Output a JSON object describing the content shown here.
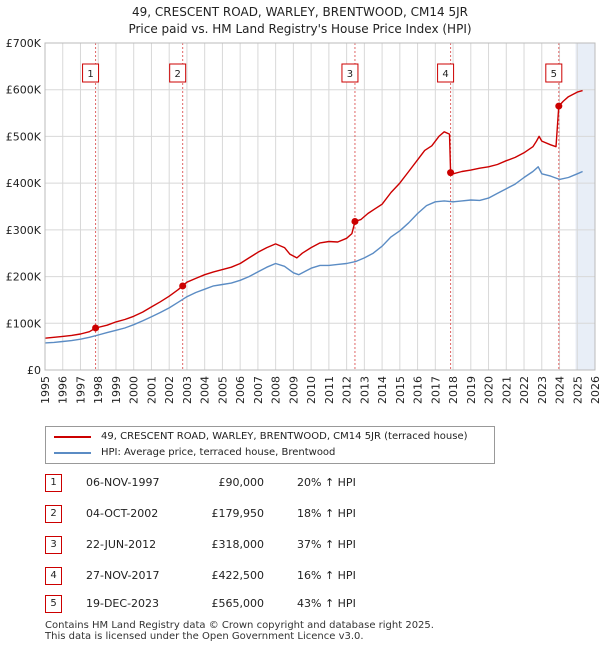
{
  "header": {
    "title": "49, CRESCENT ROAD, WARLEY, BRENTWOOD, CM14 5JR",
    "subtitle": "Price paid vs. HM Land Registry's House Price Index (HPI)"
  },
  "chart_data": {
    "type": "line",
    "title": "49, CRESCENT ROAD, WARLEY, BRENTWOOD, CM14 5JR",
    "subtitle": "Price paid vs. HM Land Registry's House Price Index (HPI)",
    "xlim": [
      1995,
      2026
    ],
    "ylim": [
      0,
      700000
    ],
    "x_ticks": [
      1995,
      1996,
      1997,
      1998,
      1999,
      2000,
      2001,
      2002,
      2003,
      2004,
      2005,
      2006,
      2007,
      2008,
      2009,
      2010,
      2011,
      2012,
      2013,
      2014,
      2015,
      2016,
      2017,
      2018,
      2019,
      2020,
      2021,
      2022,
      2023,
      2024,
      2025,
      2026
    ],
    "y_ticks": [
      0,
      100000,
      200000,
      300000,
      400000,
      500000,
      600000,
      700000
    ],
    "y_tick_labels": [
      "£0",
      "£100K",
      "£200K",
      "£300K",
      "£400K",
      "£500K",
      "£600K",
      "£700K"
    ],
    "grid": true,
    "legend_position": "bottom",
    "shaded_future_from": 2024.9,
    "colors": {
      "property": "#cc0000",
      "hpi": "#5b8cc4",
      "marker": "#cc0000",
      "vline": "#e06666",
      "shade": "#e8eef7",
      "grid": "#d8d8d8"
    },
    "series": [
      {
        "name": "49, CRESCENT ROAD, WARLEY, BRENTWOOD, CM14 5JR (terraced house)",
        "x": [
          1995.0,
          1995.5,
          1996.0,
          1996.5,
          1997.0,
          1997.5,
          1997.85,
          1998.5,
          1999.0,
          1999.5,
          2000.0,
          2000.5,
          2001.0,
          2001.5,
          2002.0,
          2002.5,
          2002.76,
          2003.0,
          2003.5,
          2004.0,
          2004.5,
          2005.0,
          2005.5,
          2006.0,
          2006.5,
          2007.0,
          2007.5,
          2008.0,
          2008.5,
          2008.8,
          2009.2,
          2009.5,
          2010.0,
          2010.5,
          2011.0,
          2011.5,
          2012.0,
          2012.3,
          2012.47,
          2012.8,
          2013.2,
          2013.6,
          2014.0,
          2014.5,
          2015.0,
          2015.5,
          2016.0,
          2016.4,
          2016.8,
          2017.2,
          2017.5,
          2017.8,
          2017.86,
          2018.0,
          2018.5,
          2019.0,
          2019.5,
          2020.0,
          2020.5,
          2021.0,
          2021.5,
          2022.0,
          2022.5,
          2022.7,
          2022.85,
          2023.0,
          2023.5,
          2023.8,
          2023.96,
          2024.2,
          2024.5,
          2025.0,
          2025.3
        ],
        "values": [
          68000,
          70000,
          72000,
          74000,
          77000,
          82000,
          90000,
          96000,
          103000,
          108000,
          115000,
          124000,
          135000,
          146000,
          158000,
          172000,
          179950,
          188000,
          196000,
          204000,
          210000,
          215000,
          220000,
          228000,
          240000,
          252000,
          262000,
          270000,
          262000,
          248000,
          240000,
          250000,
          262000,
          272000,
          275000,
          274000,
          282000,
          292000,
          318000,
          322000,
          335000,
          345000,
          355000,
          380000,
          400000,
          425000,
          450000,
          470000,
          480000,
          500000,
          510000,
          505000,
          422500,
          420000,
          425000,
          428000,
          432000,
          435000,
          440000,
          448000,
          455000,
          465000,
          478000,
          490000,
          500000,
          490000,
          482000,
          478000,
          565000,
          575000,
          585000,
          595000,
          598000
        ]
      },
      {
        "name": "HPI: Average price, terraced house, Brentwood",
        "x": [
          1995.0,
          1995.5,
          1996.0,
          1996.5,
          1997.0,
          1997.5,
          1998.0,
          1998.5,
          1999.0,
          1999.5,
          2000.0,
          2000.5,
          2001.0,
          2001.5,
          2002.0,
          2002.5,
          2003.0,
          2003.5,
          2004.0,
          2004.5,
          2005.0,
          2005.5,
          2006.0,
          2006.5,
          2007.0,
          2007.5,
          2008.0,
          2008.5,
          2009.0,
          2009.3,
          2009.7,
          2010.0,
          2010.5,
          2011.0,
          2011.5,
          2012.0,
          2012.5,
          2013.0,
          2013.5,
          2014.0,
          2014.5,
          2015.0,
          2015.5,
          2016.0,
          2016.5,
          2017.0,
          2017.5,
          2018.0,
          2018.5,
          2019.0,
          2019.5,
          2020.0,
          2020.5,
          2021.0,
          2021.5,
          2022.0,
          2022.5,
          2022.8,
          2023.0,
          2023.5,
          2024.0,
          2024.5,
          2025.0,
          2025.3
        ],
        "values": [
          58000,
          59000,
          61000,
          63000,
          66000,
          70000,
          75000,
          80000,
          85000,
          90000,
          97000,
          105000,
          114000,
          123000,
          133000,
          145000,
          157000,
          166000,
          173000,
          180000,
          183000,
          186000,
          192000,
          200000,
          210000,
          220000,
          228000,
          222000,
          208000,
          204000,
          212000,
          218000,
          224000,
          224000,
          226000,
          228000,
          232000,
          240000,
          250000,
          265000,
          285000,
          298000,
          315000,
          335000,
          352000,
          360000,
          362000,
          360000,
          362000,
          364000,
          363000,
          368000,
          378000,
          388000,
          398000,
          412000,
          425000,
          435000,
          420000,
          415000,
          408000,
          412000,
          420000,
          425000
        ]
      }
    ],
    "sales": [
      {
        "label": "1",
        "x": 1997.85,
        "value": 90000
      },
      {
        "label": "2",
        "x": 2002.76,
        "value": 179950
      },
      {
        "label": "3",
        "x": 2012.47,
        "value": 318000
      },
      {
        "label": "4",
        "x": 2017.86,
        "value": 422500
      },
      {
        "label": "5",
        "x": 2023.96,
        "value": 565000
      }
    ]
  },
  "legend": {
    "property_label": "49, CRESCENT ROAD, WARLEY, BRENTWOOD, CM14 5JR (terraced house)",
    "hpi_label": "HPI: Average price, terraced house, Brentwood"
  },
  "transactions": [
    {
      "num": "1",
      "date": "06-NOV-1997",
      "price": "£90,000",
      "hpi": "20% ↑ HPI"
    },
    {
      "num": "2",
      "date": "04-OCT-2002",
      "price": "£179,950",
      "hpi": "18% ↑ HPI"
    },
    {
      "num": "3",
      "date": "22-JUN-2012",
      "price": "£318,000",
      "hpi": "37% ↑ HPI"
    },
    {
      "num": "4",
      "date": "27-NOV-2017",
      "price": "£422,500",
      "hpi": "16% ↑ HPI"
    },
    {
      "num": "5",
      "date": "19-DEC-2023",
      "price": "£565,000",
      "hpi": "43% ↑ HPI"
    }
  ],
  "footer": {
    "line1": "Contains HM Land Registry data © Crown copyright and database right 2025.",
    "line2": "This data is licensed under the Open Government Licence v3.0."
  }
}
